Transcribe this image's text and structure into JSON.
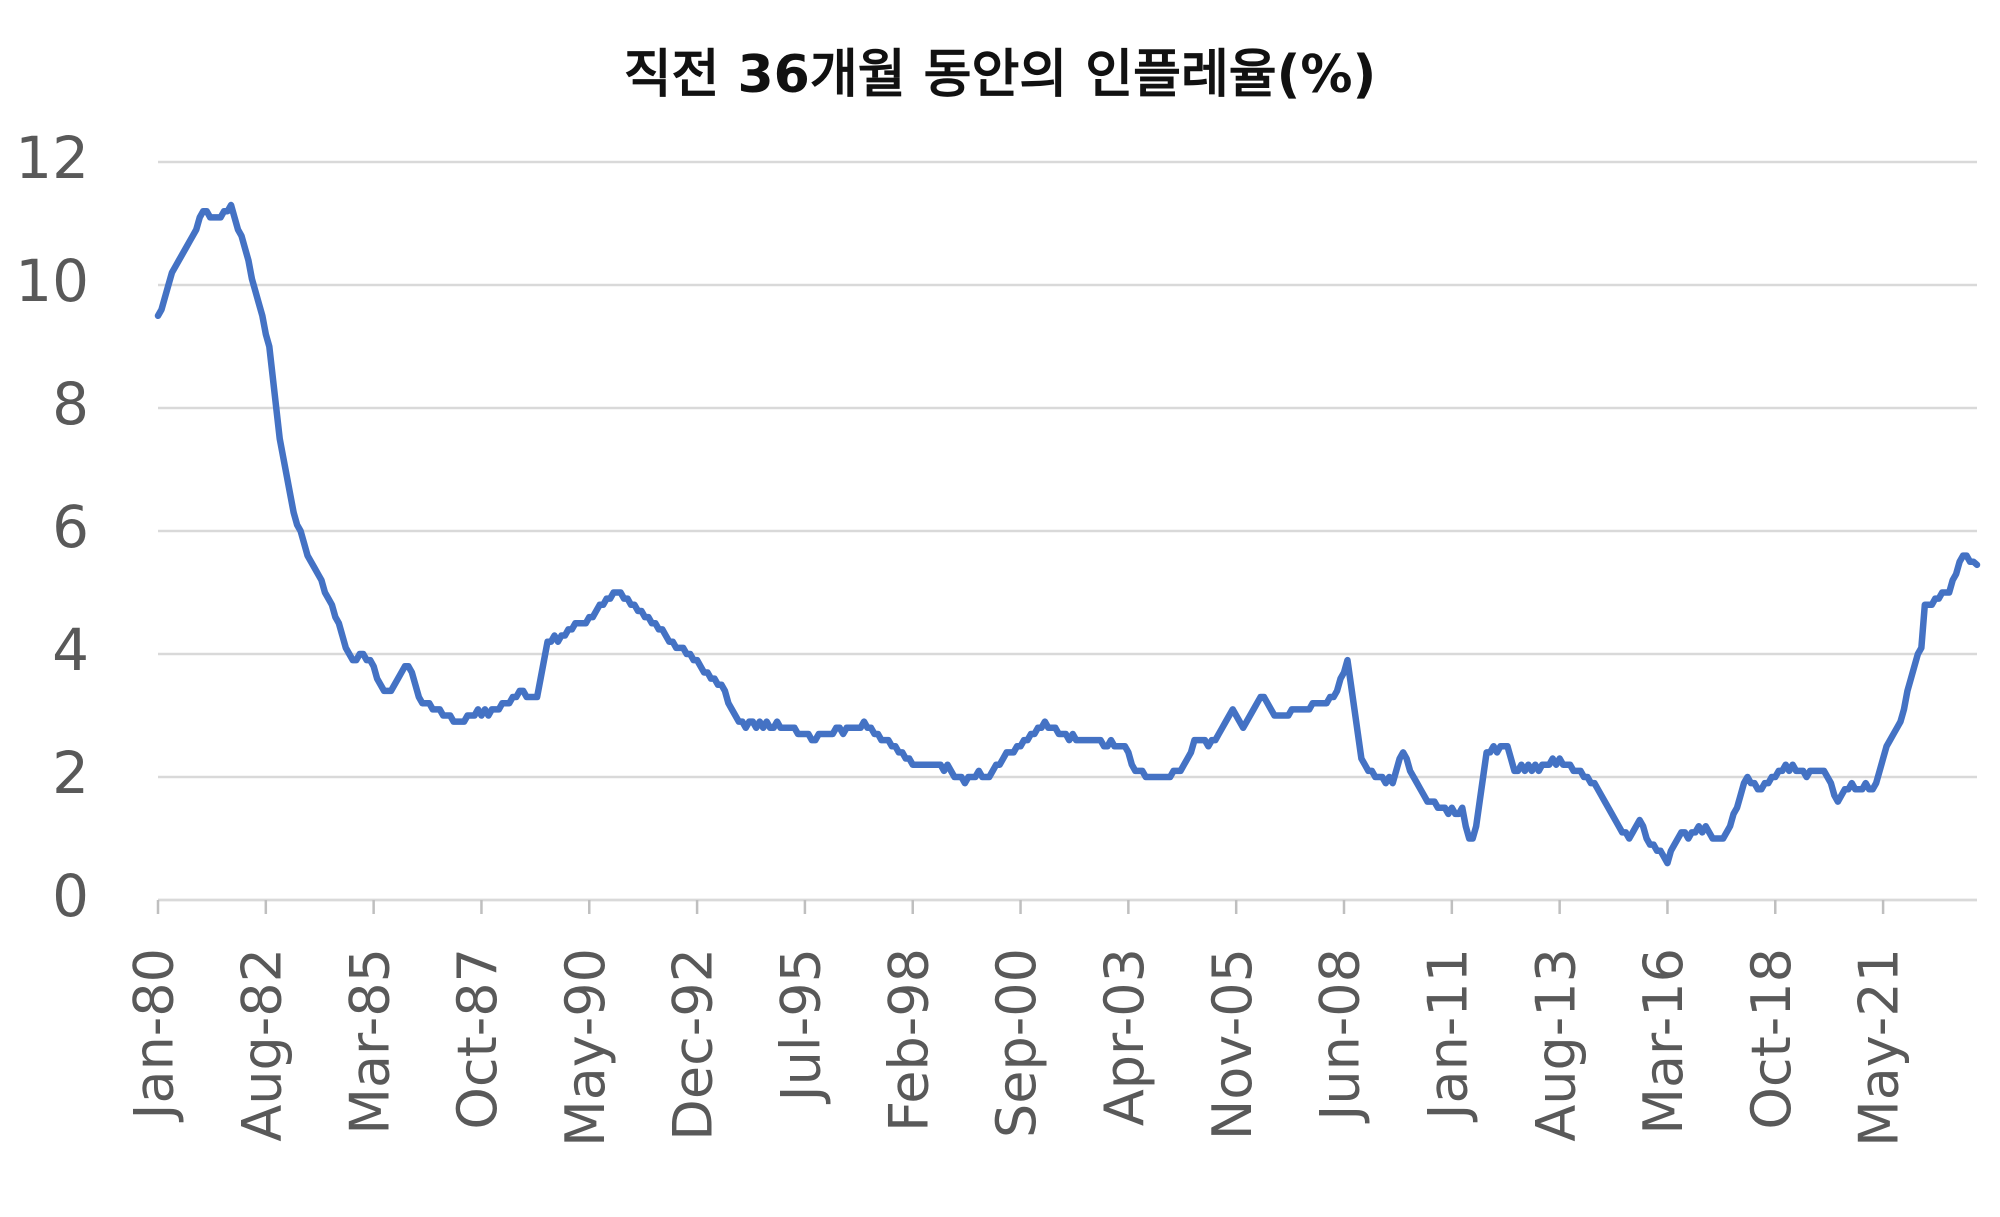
{
  "chart_data": {
    "type": "line",
    "title": "직전 36개월 동안의 인플레율(%)",
    "color": "#4472c4",
    "grid": true,
    "ylim": [
      0,
      12
    ],
    "yticks": [
      0,
      2,
      4,
      6,
      8,
      10,
      12
    ],
    "categories": [
      "Jan-80",
      null,
      null,
      null,
      null,
      null,
      null,
      null,
      null,
      null,
      null,
      null,
      null,
      null,
      null,
      null,
      null,
      null,
      null,
      null,
      null,
      null,
      null,
      null,
      null,
      null,
      null,
      null,
      null,
      null,
      null,
      "Aug-82",
      null,
      null,
      null,
      null,
      null,
      null,
      null,
      null,
      null,
      null,
      null,
      null,
      null,
      null,
      null,
      null,
      null,
      null,
      null,
      null,
      null,
      null,
      null,
      null,
      null,
      null,
      null,
      null,
      null,
      null,
      "Mar-85",
      null,
      null,
      null,
      null,
      null,
      null,
      null,
      null,
      null,
      null,
      null,
      null,
      null,
      null,
      null,
      null,
      null,
      null,
      null,
      null,
      null,
      null,
      null,
      null,
      null,
      null,
      null,
      null,
      null,
      null,
      "Oct-87",
      null,
      null,
      null,
      null,
      null,
      null,
      null,
      null,
      null,
      null,
      null,
      null,
      null,
      null,
      null,
      null,
      null,
      null,
      null,
      null,
      null,
      null,
      null,
      null,
      null,
      null,
      null,
      null,
      null,
      null,
      "May-90",
      null,
      null,
      null,
      null,
      null,
      null,
      null,
      null,
      null,
      null,
      null,
      null,
      null,
      null,
      null,
      null,
      null,
      null,
      null,
      null,
      null,
      null,
      null,
      null,
      null,
      null,
      null,
      null,
      null,
      null,
      "Dec-92",
      null,
      null,
      null,
      null,
      null,
      null,
      null,
      null,
      null,
      null,
      null,
      null,
      null,
      null,
      null,
      null,
      null,
      null,
      null,
      null,
      null,
      null,
      null,
      null,
      null,
      null,
      null,
      null,
      null,
      null,
      "Jul-95",
      null,
      null,
      null,
      null,
      null,
      null,
      null,
      null,
      null,
      null,
      null,
      null,
      null,
      null,
      null,
      null,
      null,
      null,
      null,
      null,
      null,
      null,
      null,
      null,
      null,
      null,
      null,
      null,
      null,
      null,
      "Feb-98",
      null,
      null,
      null,
      null,
      null,
      null,
      null,
      null,
      null,
      null,
      null,
      null,
      null,
      null,
      null,
      null,
      null,
      null,
      null,
      null,
      null,
      null,
      null,
      null,
      null,
      null,
      null,
      null,
      null,
      null,
      "Sep-00",
      null,
      null,
      null,
      null,
      null,
      null,
      null,
      null,
      null,
      null,
      null,
      null,
      null,
      null,
      null,
      null,
      null,
      null,
      null,
      null,
      null,
      null,
      null,
      null,
      null,
      null,
      null,
      null,
      null,
      null,
      "Apr-03",
      null,
      null,
      null,
      null,
      null,
      null,
      null,
      null,
      null,
      null,
      null,
      null,
      null,
      null,
      null,
      null,
      null,
      null,
      null,
      null,
      null,
      null,
      null,
      null,
      null,
      null,
      null,
      null,
      null,
      null,
      "Nov-05",
      null,
      null,
      null,
      null,
      null,
      null,
      null,
      null,
      null,
      null,
      null,
      null,
      null,
      null,
      null,
      null,
      null,
      null,
      null,
      null,
      null,
      null,
      null,
      null,
      null,
      null,
      null,
      null,
      null,
      null,
      "Jun-08",
      null,
      null,
      null,
      null,
      null,
      null,
      null,
      null,
      null,
      null,
      null,
      null,
      null,
      null,
      null,
      null,
      null,
      null,
      null,
      null,
      null,
      null,
      null,
      null,
      null,
      null,
      null,
      null,
      null,
      null,
      "Jan-11",
      null,
      null,
      null,
      null,
      null,
      null,
      null,
      null,
      null,
      null,
      null,
      null,
      null,
      null,
      null,
      null,
      null,
      null,
      null,
      null,
      null,
      null,
      null,
      null,
      null,
      null,
      null,
      null,
      null,
      null,
      "Aug-13",
      null,
      null,
      null,
      null,
      null,
      null,
      null,
      null,
      null,
      null,
      null,
      null,
      null,
      null,
      null,
      null,
      null,
      null,
      null,
      null,
      null,
      null,
      null,
      null,
      null,
      null,
      null,
      null,
      null,
      null,
      "Mar-16",
      null,
      null,
      null,
      null,
      null,
      null,
      null,
      null,
      null,
      null,
      null,
      null,
      null,
      null,
      null,
      null,
      null,
      null,
      null,
      null,
      null,
      null,
      null,
      null,
      null,
      null,
      null,
      null,
      null,
      null,
      "Oct-18",
      null,
      null,
      null,
      null,
      null,
      null,
      null,
      null,
      null,
      null,
      null,
      null,
      null,
      null,
      null,
      null,
      null,
      null,
      null,
      null,
      null,
      null,
      null,
      null,
      null,
      null,
      null,
      null,
      null,
      null,
      "May-21",
      null,
      null,
      null,
      null,
      null,
      null,
      null,
      null,
      null,
      null,
      null,
      null,
      null,
      null,
      null,
      null,
      null,
      null,
      null,
      null,
      null,
      null,
      null,
      null,
      null,
      null,
      null
    ],
    "values": [
      9.5,
      9.6,
      9.8,
      10.0,
      10.2,
      10.3,
      10.4,
      10.5,
      10.6,
      10.7,
      10.8,
      10.9,
      11.1,
      11.2,
      11.2,
      11.1,
      11.1,
      11.1,
      11.1,
      11.2,
      11.2,
      11.3,
      11.1,
      10.9,
      10.8,
      10.6,
      10.4,
      10.1,
      9.9,
      9.7,
      9.5,
      9.2,
      9.0,
      8.5,
      8.0,
      7.5,
      7.2,
      6.9,
      6.6,
      6.3,
      6.1,
      6.0,
      5.8,
      5.6,
      5.5,
      5.4,
      5.3,
      5.2,
      5.0,
      4.9,
      4.8,
      4.6,
      4.5,
      4.3,
      4.1,
      4.0,
      3.9,
      3.9,
      4.0,
      4.0,
      3.9,
      3.9,
      3.8,
      3.6,
      3.5,
      3.4,
      3.4,
      3.4,
      3.5,
      3.6,
      3.7,
      3.8,
      3.8,
      3.7,
      3.5,
      3.3,
      3.2,
      3.2,
      3.2,
      3.1,
      3.1,
      3.1,
      3.0,
      3.0,
      3.0,
      2.9,
      2.9,
      2.9,
      2.9,
      3.0,
      3.0,
      3.0,
      3.1,
      3.0,
      3.1,
      3.0,
      3.1,
      3.1,
      3.1,
      3.2,
      3.2,
      3.2,
      3.3,
      3.3,
      3.4,
      3.4,
      3.3,
      3.3,
      3.3,
      3.3,
      3.6,
      3.9,
      4.2,
      4.2,
      4.3,
      4.2,
      4.3,
      4.3,
      4.4,
      4.4,
      4.5,
      4.5,
      4.5,
      4.5,
      4.6,
      4.6,
      4.7,
      4.8,
      4.8,
      4.9,
      4.9,
      5.0,
      5.0,
      5.0,
      4.9,
      4.9,
      4.8,
      4.8,
      4.7,
      4.7,
      4.6,
      4.6,
      4.5,
      4.5,
      4.4,
      4.4,
      4.3,
      4.2,
      4.2,
      4.1,
      4.1,
      4.1,
      4.0,
      4.0,
      3.9,
      3.9,
      3.8,
      3.7,
      3.7,
      3.6,
      3.6,
      3.5,
      3.5,
      3.4,
      3.2,
      3.1,
      3.0,
      2.9,
      2.9,
      2.8,
      2.9,
      2.9,
      2.8,
      2.9,
      2.8,
      2.9,
      2.8,
      2.8,
      2.9,
      2.8,
      2.8,
      2.8,
      2.8,
      2.8,
      2.7,
      2.7,
      2.7,
      2.7,
      2.6,
      2.6,
      2.7,
      2.7,
      2.7,
      2.7,
      2.7,
      2.8,
      2.8,
      2.7,
      2.8,
      2.8,
      2.8,
      2.8,
      2.8,
      2.9,
      2.8,
      2.8,
      2.7,
      2.7,
      2.6,
      2.6,
      2.6,
      2.5,
      2.5,
      2.4,
      2.4,
      2.3,
      2.3,
      2.2,
      2.2,
      2.2,
      2.2,
      2.2,
      2.2,
      2.2,
      2.2,
      2.2,
      2.1,
      2.2,
      2.1,
      2.0,
      2.0,
      2.0,
      1.9,
      2.0,
      2.0,
      2.0,
      2.1,
      2.0,
      2.0,
      2.0,
      2.1,
      2.2,
      2.2,
      2.3,
      2.4,
      2.4,
      2.4,
      2.5,
      2.5,
      2.6,
      2.6,
      2.7,
      2.7,
      2.8,
      2.8,
      2.9,
      2.8,
      2.8,
      2.8,
      2.7,
      2.7,
      2.7,
      2.6,
      2.7,
      2.6,
      2.6,
      2.6,
      2.6,
      2.6,
      2.6,
      2.6,
      2.6,
      2.5,
      2.5,
      2.6,
      2.5,
      2.5,
      2.5,
      2.5,
      2.4,
      2.2,
      2.1,
      2.1,
      2.1,
      2.0,
      2.0,
      2.0,
      2.0,
      2.0,
      2.0,
      2.0,
      2.0,
      2.1,
      2.1,
      2.1,
      2.2,
      2.3,
      2.4,
      2.6,
      2.6,
      2.6,
      2.6,
      2.5,
      2.6,
      2.6,
      2.7,
      2.8,
      2.9,
      3.0,
      3.1,
      3.0,
      2.9,
      2.8,
      2.9,
      3.0,
      3.1,
      3.2,
      3.3,
      3.3,
      3.2,
      3.1,
      3.0,
      3.0,
      3.0,
      3.0,
      3.0,
      3.1,
      3.1,
      3.1,
      3.1,
      3.1,
      3.1,
      3.2,
      3.2,
      3.2,
      3.2,
      3.2,
      3.3,
      3.3,
      3.4,
      3.6,
      3.7,
      3.9,
      3.5,
      3.1,
      2.7,
      2.3,
      2.2,
      2.1,
      2.1,
      2.0,
      2.0,
      2.0,
      1.9,
      2.0,
      1.9,
      2.1,
      2.3,
      2.4,
      2.3,
      2.1,
      2.0,
      1.9,
      1.8,
      1.7,
      1.6,
      1.6,
      1.6,
      1.5,
      1.5,
      1.5,
      1.4,
      1.5,
      1.4,
      1.4,
      1.5,
      1.2,
      1.0,
      1.0,
      1.2,
      1.6,
      2.0,
      2.4,
      2.4,
      2.5,
      2.4,
      2.5,
      2.5,
      2.5,
      2.3,
      2.1,
      2.1,
      2.2,
      2.1,
      2.2,
      2.1,
      2.2,
      2.1,
      2.2,
      2.2,
      2.2,
      2.3,
      2.2,
      2.3,
      2.2,
      2.2,
      2.2,
      2.1,
      2.1,
      2.1,
      2.0,
      2.0,
      1.9,
      1.9,
      1.8,
      1.7,
      1.6,
      1.5,
      1.4,
      1.3,
      1.2,
      1.1,
      1.1,
      1.0,
      1.1,
      1.2,
      1.3,
      1.2,
      1.0,
      0.9,
      0.9,
      0.8,
      0.8,
      0.7,
      0.6,
      0.8,
      0.9,
      1.0,
      1.1,
      1.1,
      1.0,
      1.1,
      1.1,
      1.2,
      1.1,
      1.2,
      1.1,
      1.0,
      1.0,
      1.0,
      1.0,
      1.1,
      1.2,
      1.4,
      1.5,
      1.7,
      1.9,
      2.0,
      1.9,
      1.9,
      1.8,
      1.8,
      1.9,
      1.9,
      2.0,
      2.0,
      2.1,
      2.1,
      2.2,
      2.1,
      2.2,
      2.1,
      2.1,
      2.1,
      2.0,
      2.1,
      2.1,
      2.1,
      2.1,
      2.1,
      2.0,
      1.9,
      1.7,
      1.6,
      1.7,
      1.8,
      1.8,
      1.9,
      1.8,
      1.8,
      1.8,
      1.9,
      1.8,
      1.8,
      1.9,
      2.1,
      2.3,
      2.5,
      2.6,
      2.7,
      2.8,
      2.9,
      3.1,
      3.4,
      3.6,
      3.8,
      4.0,
      4.1,
      4.8,
      4.8,
      4.8,
      4.9,
      4.9,
      5.0,
      5.0,
      5.0,
      5.2,
      5.3,
      5.5,
      5.6,
      5.6,
      5.5,
      5.5,
      5.45
    ]
  }
}
